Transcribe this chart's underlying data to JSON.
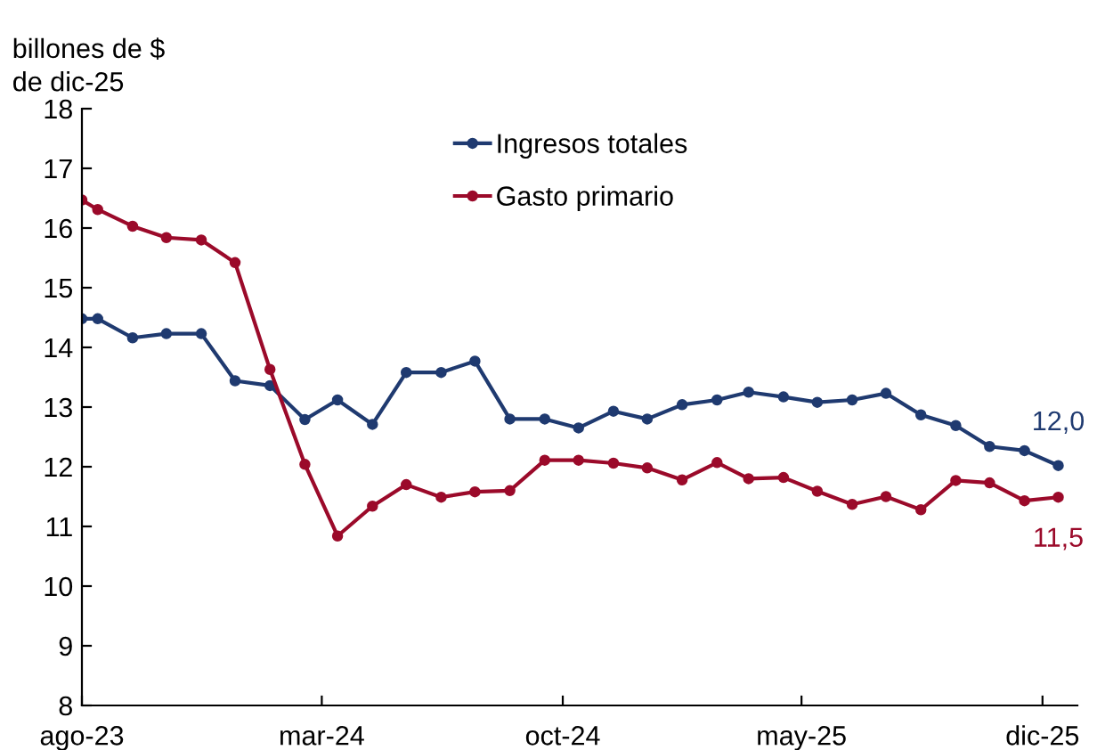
{
  "chart_data": {
    "type": "line",
    "ylabel": "billones de $\nde dic-25",
    "x": [
      "2023-08-01",
      "2023-08-15",
      "2023-09-15",
      "2023-10-15",
      "2023-11-15",
      "2023-12-15",
      "2024-01-15",
      "2024-02-15",
      "2024-03-15",
      "2024-04-15",
      "2024-05-15",
      "2024-06-15",
      "2024-07-15",
      "2024-08-15",
      "2024-09-15",
      "2024-10-15",
      "2024-11-15",
      "2024-12-15",
      "2025-01-15",
      "2025-02-15",
      "2025-03-15",
      "2025-04-15",
      "2025-05-15",
      "2025-06-15",
      "2025-07-15",
      "2025-08-15",
      "2025-09-15",
      "2025-10-15",
      "2025-11-15",
      "2025-12-15"
    ],
    "series": [
      {
        "name": "Ingresos totales",
        "color": "#1f3a70",
        "values": [
          14.48,
          14.48,
          14.16,
          14.23,
          14.23,
          13.44,
          13.36,
          12.79,
          13.12,
          12.71,
          13.58,
          13.58,
          13.77,
          12.8,
          12.8,
          12.65,
          12.93,
          12.8,
          13.04,
          13.12,
          13.25,
          13.17,
          13.08,
          13.12,
          13.23,
          12.87,
          12.69,
          12.34,
          12.27,
          12.02
        ]
      },
      {
        "name": "Gasto primario",
        "color": "#9b0a2a",
        "values": [
          16.47,
          16.31,
          16.03,
          15.84,
          15.8,
          15.42,
          13.63,
          12.04,
          10.84,
          11.34,
          11.7,
          11.49,
          11.58,
          11.6,
          12.11,
          12.11,
          12.06,
          11.98,
          11.78,
          12.07,
          11.8,
          11.82,
          11.59,
          11.37,
          11.5,
          11.28,
          11.77,
          11.73,
          11.43,
          11.49
        ]
      }
    ],
    "annotations": [
      {
        "text": "12,0",
        "x": "2025-12-15",
        "y": 12.02
      },
      {
        "text": "11,5",
        "x": "2025-12-15",
        "y": 11.49
      }
    ],
    "xlim": [
      "2023-08-01",
      "2026-01-01"
    ],
    "xticks": [
      {
        "value": "2023-08-01",
        "label": "ago-23"
      },
      {
        "value": "2024-03-01",
        "label": "mar-24"
      },
      {
        "value": "2024-10-01",
        "label": "oct-24"
      },
      {
        "value": "2025-05-01",
        "label": "may-25"
      },
      {
        "value": "2025-12-01",
        "label": "dic-25"
      }
    ],
    "ylim": [
      8,
      18
    ],
    "yticks": [
      8,
      9,
      10,
      11,
      12,
      13,
      14,
      15,
      16,
      17,
      18
    ],
    "marker": "circle",
    "line_style": "solid",
    "legend": "top",
    "grid": false
  }
}
